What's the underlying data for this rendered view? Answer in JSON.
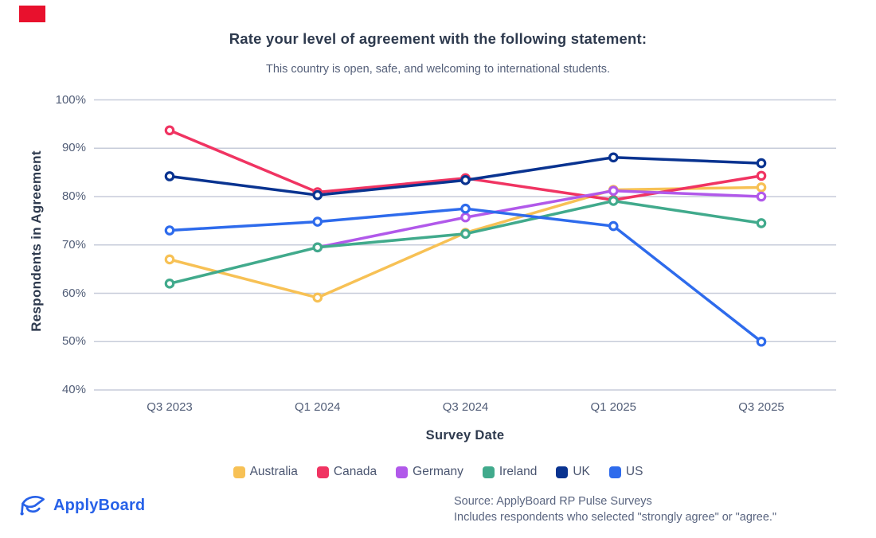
{
  "page": {
    "badge_color": "#E8112D",
    "title": "Rate your level of agreement with the following statement:",
    "subtitle": "This country is open, safe, and welcoming to international students.",
    "footer": {
      "logo_text": "ApplyBoard",
      "logo_color": "#2761E8",
      "source_line1": "Source: ApplyBoard RP Pulse Surveys",
      "source_line2": "Includes respondents who selected \"strongly agree\" or \"agree.\""
    }
  },
  "chart_data": {
    "type": "line",
    "title": "Rate your level of agreement with the following statement:",
    "subtitle": "This country is open, safe, and welcoming to international students.",
    "xlabel": "Survey Date",
    "ylabel": "Respondents in Agreement",
    "categories": [
      "Q3 2023",
      "Q1 2024",
      "Q3 2024",
      "Q1 2025",
      "Q3 2025"
    ],
    "ylim": [
      40,
      100
    ],
    "ytick_step": 10,
    "ytick_suffix": "%",
    "grid": true,
    "legend_position": "bottom",
    "marker": "open-circle",
    "grid_color": "#C7CCDA",
    "series": [
      {
        "name": "Australia",
        "color": "#F7C155",
        "values": [
          67,
          59.1,
          72.5,
          81.4,
          81.9
        ]
      },
      {
        "name": "Canada",
        "color": "#F03462",
        "values": [
          93.7,
          80.9,
          83.8,
          79.3,
          84.3
        ]
      },
      {
        "name": "Germany",
        "color": "#B159EA",
        "values": [
          null,
          69.5,
          75.7,
          81.2,
          80
        ]
      },
      {
        "name": "Ireland",
        "color": "#41AA8C",
        "values": [
          62,
          69.5,
          72.3,
          79.1,
          74.5
        ]
      },
      {
        "name": "UK",
        "color": "#093390",
        "values": [
          84.2,
          80.3,
          83.4,
          88.1,
          86.9
        ]
      },
      {
        "name": "US",
        "color": "#2E6BEC",
        "values": [
          73,
          74.8,
          77.5,
          73.9,
          50
        ]
      }
    ]
  }
}
